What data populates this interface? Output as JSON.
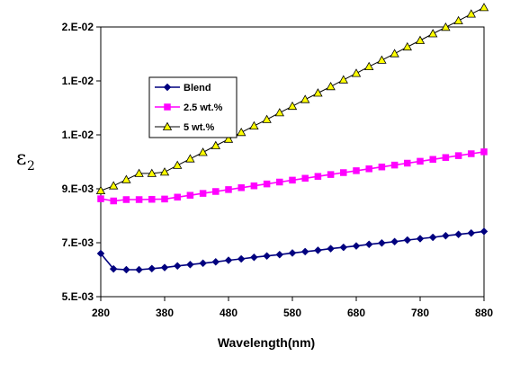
{
  "chart_data": {
    "type": "line",
    "xlabel": "Wavelength(nm)",
    "ylabel": "ε",
    "ylabel_subscript": "2",
    "xlim": [
      280,
      880
    ],
    "ylim": [
      0.005,
      0.015
    ],
    "x_ticks": [
      280,
      380,
      480,
      580,
      680,
      780,
      880
    ],
    "x_tick_labels": [
      "280",
      "380",
      "480",
      "580",
      "680",
      "780",
      "880"
    ],
    "y_ticks": [
      0.005,
      0.007,
      0.009,
      0.011,
      0.013,
      0.015
    ],
    "y_tick_labels": [
      "5.E-03",
      "7.E-03",
      "9.E-03",
      "1.E-02",
      "1.E-02",
      "2.E-02"
    ],
    "grid": false,
    "legend_position": "top-left",
    "x": [
      280,
      300,
      320,
      340,
      360,
      380,
      400,
      420,
      440,
      460,
      480,
      500,
      520,
      540,
      560,
      580,
      600,
      620,
      640,
      660,
      680,
      700,
      720,
      740,
      760,
      780,
      800,
      820,
      840,
      860,
      880
    ],
    "series": [
      {
        "name": "Blend",
        "color": "#00007f",
        "marker": "diamond",
        "values": [
          0.0066,
          0.00603,
          0.006,
          0.006,
          0.00604,
          0.00608,
          0.00614,
          0.00619,
          0.00624,
          0.00629,
          0.00635,
          0.0064,
          0.00646,
          0.00651,
          0.00656,
          0.00662,
          0.00667,
          0.00672,
          0.00678,
          0.00683,
          0.00688,
          0.00694,
          0.00699,
          0.00704,
          0.0071,
          0.00715,
          0.0072,
          0.00726,
          0.00731,
          0.00736,
          0.00742
        ]
      },
      {
        "name": "2.5 wt.%",
        "color": "#ff00ff",
        "marker": "square",
        "values": [
          0.00863,
          0.00855,
          0.0086,
          0.0086,
          0.00861,
          0.00862,
          0.00869,
          0.00876,
          0.00883,
          0.0089,
          0.00897,
          0.00904,
          0.00911,
          0.00918,
          0.00925,
          0.00932,
          0.00939,
          0.00946,
          0.00953,
          0.0096,
          0.00967,
          0.00974,
          0.00981,
          0.00988,
          0.00995,
          0.01002,
          0.01009,
          0.01016,
          0.01023,
          0.0103,
          0.01037
        ]
      },
      {
        "name": "5 wt.%",
        "color": "#ffff00",
        "marker": "triangle",
        "values": [
          0.00893,
          0.00911,
          0.00934,
          0.00957,
          0.00957,
          0.00962,
          0.00987,
          0.01011,
          0.01035,
          0.0106,
          0.01084,
          0.01109,
          0.01133,
          0.01157,
          0.01182,
          0.01206,
          0.01231,
          0.01255,
          0.01279,
          0.01304,
          0.01328,
          0.01353,
          0.01377,
          0.01401,
          0.01426,
          0.0145,
          0.01475,
          0.01499,
          0.01523,
          0.01548,
          0.01572
        ]
      }
    ]
  }
}
